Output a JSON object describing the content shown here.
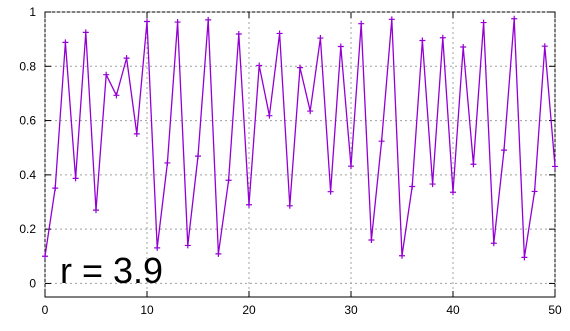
{
  "chart_data": {
    "type": "line",
    "title": "",
    "xlabel": "",
    "ylabel": "",
    "xlim": [
      0,
      50
    ],
    "ylim": [
      -0.05,
      1
    ],
    "x_ticks": [
      0,
      10,
      20,
      30,
      40,
      50
    ],
    "y_ticks": [
      0,
      0.2,
      0.4,
      0.6,
      0.8,
      1
    ],
    "x_tick_labels": [
      "0",
      "10",
      "20",
      "30",
      "40",
      "50"
    ],
    "y_tick_labels": [
      "0",
      "0.2",
      "0.4",
      "0.6",
      "0.8",
      "1"
    ],
    "grid": true,
    "legend": "none",
    "annotation": "r = 3.9",
    "series": [
      {
        "color": "#9400d3",
        "marker": "plus",
        "x": [
          0,
          1,
          2,
          3,
          4,
          5,
          6,
          7,
          8,
          9,
          10,
          11,
          12,
          13,
          14,
          15,
          16,
          17,
          18,
          19,
          20,
          21,
          22,
          23,
          24,
          25,
          26,
          27,
          28,
          29,
          30,
          31,
          32,
          33,
          34,
          35,
          36,
          37,
          38,
          39,
          40,
          41,
          42,
          43,
          44,
          45,
          46,
          47,
          48,
          49,
          50
        ],
        "values": [
          0.1,
          0.351,
          0.888,
          0.387,
          0.925,
          0.27,
          0.769,
          0.693,
          0.83,
          0.551,
          0.965,
          0.131,
          0.444,
          0.963,
          0.14,
          0.469,
          0.971,
          0.109,
          0.38,
          0.919,
          0.29,
          0.803,
          0.618,
          0.921,
          0.286,
          0.795,
          0.635,
          0.904,
          0.338,
          0.873,
          0.432,
          0.957,
          0.16,
          0.524,
          0.973,
          0.102,
          0.357,
          0.895,
          0.366,
          0.905,
          0.336,
          0.871,
          0.439,
          0.961,
          0.148,
          0.491,
          0.975,
          0.096,
          0.339,
          0.874,
          0.431
        ]
      }
    ]
  }
}
